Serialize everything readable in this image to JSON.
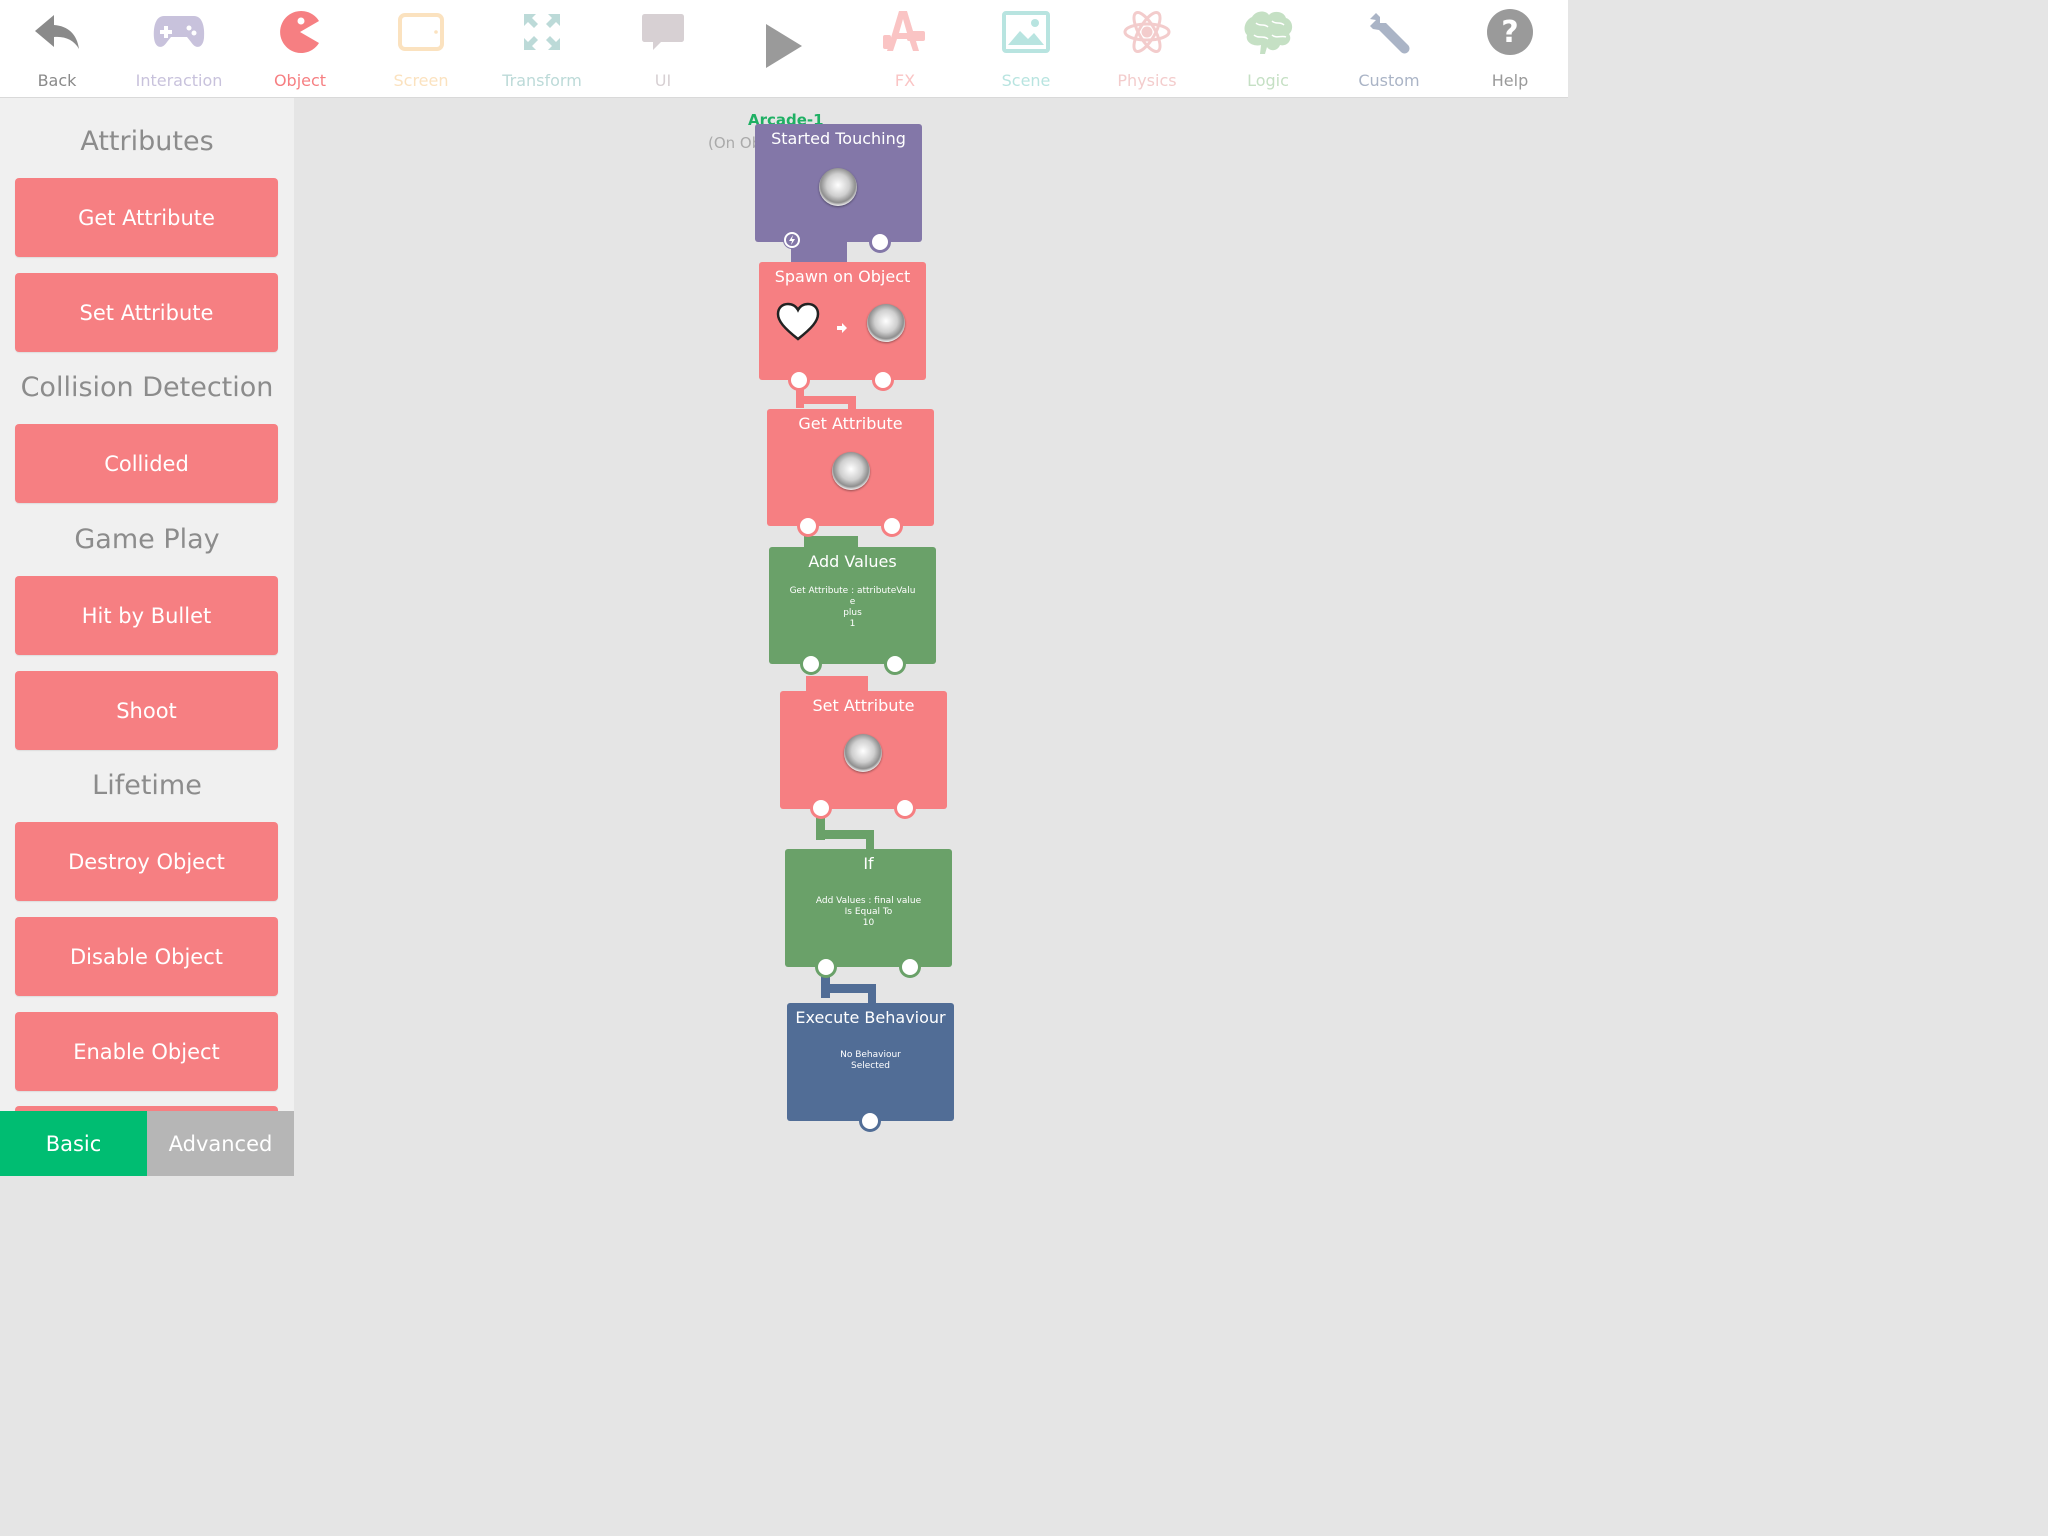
{
  "toolbar": {
    "items": [
      {
        "label": "Back",
        "icon": "back-arrow-icon",
        "color": "#8a8a8a"
      },
      {
        "label": "Interaction",
        "icon": "gamepad-icon",
        "color": "#c8c2dc"
      },
      {
        "label": "Object",
        "icon": "pacman-icon",
        "color": "#f67f82"
      },
      {
        "label": "Screen",
        "icon": "tablet-icon",
        "color": "#fbe2bf"
      },
      {
        "label": "Transform",
        "icon": "expand-arrows-icon",
        "color": "#bcdad8"
      },
      {
        "label": "UI",
        "icon": "speech-bubble-icon",
        "color": "#d7d0d3"
      },
      {
        "label": "",
        "icon": "play-icon",
        "color": "#9a9a9a"
      },
      {
        "label": "FX",
        "icon": "paint-icon",
        "color": "#fac4c4"
      },
      {
        "label": "Scene",
        "icon": "image-icon",
        "color": "#b8e4e0"
      },
      {
        "label": "Physics",
        "icon": "atom-icon",
        "color": "#f3cccc"
      },
      {
        "label": "Logic",
        "icon": "brain-icon",
        "color": "#c5e0c4"
      },
      {
        "label": "Custom",
        "icon": "wrench-icon",
        "color": "#aab4c6"
      },
      {
        "label": "Help",
        "icon": "help-icon",
        "color": "#9a9a9a"
      }
    ]
  },
  "sidebar": {
    "sections": {
      "attributes": "Attributes",
      "collision": "Collision Detection",
      "gameplay": "Game Play",
      "lifetime": "Lifetime"
    },
    "buttons": {
      "get_attribute": "Get Attribute",
      "set_attribute": "Set Attribute",
      "collided": "Collided",
      "hit_by_bullet": "Hit by Bullet",
      "shoot": "Shoot",
      "destroy_object": "Destroy Object",
      "disable_object": "Disable Object",
      "enable_object": "Enable Object"
    },
    "mode_basic": "Basic",
    "mode_advanced": "Advanced"
  },
  "canvas": {
    "trigger_name": "Arcade-1",
    "trigger_note": "(On Obje",
    "blocks": {
      "started_touching": {
        "title": "Started Touching",
        "color": "#8377a8"
      },
      "spawn_on_object": {
        "title": "Spawn on Object",
        "color": "#f67f82"
      },
      "get_attribute": {
        "title": "Get Attribute",
        "color": "#f67f82"
      },
      "add_values": {
        "title": "Add Values",
        "line1": "Get Attribute : attributeValu",
        "line2": "e",
        "line3": "plus",
        "line4": "1",
        "color": "#6aa169"
      },
      "set_attribute": {
        "title": "Set Attribute",
        "color": "#f67f82"
      },
      "if": {
        "title": "If",
        "line1": "Add Values : final value",
        "line2": "Is Equal To",
        "line3": "10",
        "color": "#6aa169"
      },
      "execute_behaviour": {
        "title": "Execute Behaviour",
        "line1": "No Behaviour",
        "line2": "Selected",
        "color": "#516d96"
      }
    }
  }
}
